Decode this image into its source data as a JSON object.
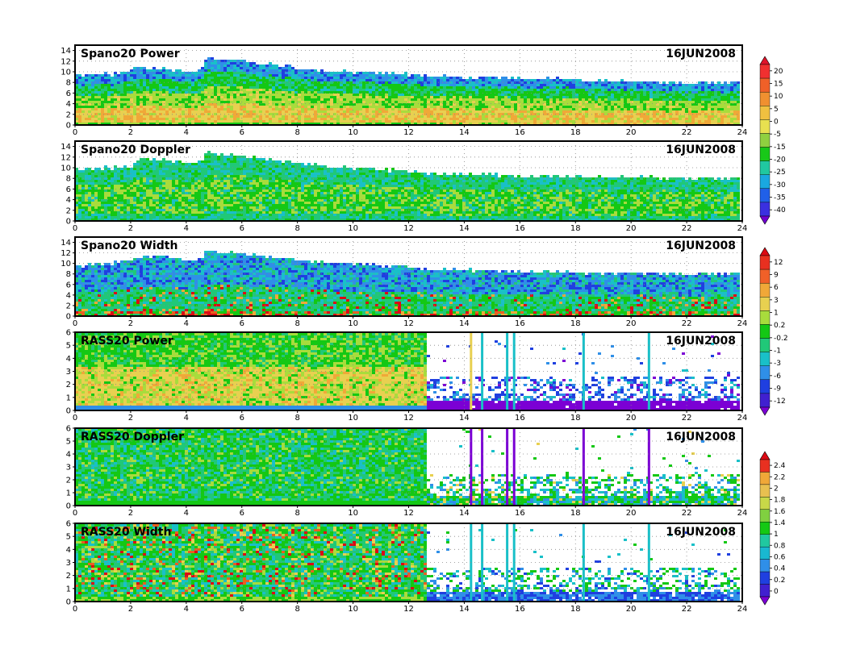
{
  "colors": {
    "palette": [
      "#7b00d4",
      "#1f3fe0",
      "#2f8fe8",
      "#19c0c8",
      "#20c878",
      "#14c814",
      "#a8dc3c",
      "#e8d050",
      "#f0a838",
      "#e86020",
      "#dc0a14"
    ],
    "frame": "#000000",
    "grid": "#888888"
  },
  "chart_data": [
    {
      "type": "heatmap",
      "title": "Spano20 Power",
      "date": "16JUN2008",
      "x_ticks": [
        "0",
        "2",
        "4",
        "6",
        "8",
        "10",
        "12",
        "14",
        "16",
        "18",
        "20",
        "22",
        "24"
      ],
      "y_ticks": [
        "0",
        "2",
        "4",
        "6",
        "8",
        "10",
        "12",
        "14"
      ],
      "xlim": [
        0,
        24
      ],
      "ylim": [
        0,
        15
      ],
      "grid": true,
      "top_height_profile": [
        [
          0,
          9.5
        ],
        [
          1.6,
          9.7
        ],
        [
          2.2,
          10.8
        ],
        [
          4.4,
          10.2
        ],
        [
          4.8,
          12.5
        ],
        [
          6,
          12.2
        ],
        [
          8,
          10.8
        ],
        [
          10,
          10
        ],
        [
          12,
          9.6
        ],
        [
          14,
          9
        ],
        [
          16,
          8.9
        ],
        [
          18,
          8.6
        ],
        [
          20,
          8.2
        ],
        [
          22,
          7.9
        ],
        [
          24,
          8
        ]
      ],
      "colorbar_labels": [
        "20",
        "15",
        "10",
        "5",
        "0",
        "-5",
        "-15",
        "-20",
        "-25",
        "-30",
        "-35",
        "-40"
      ]
    },
    {
      "type": "heatmap",
      "title": "Spano20 Doppler",
      "date": "16JUN2008",
      "x_ticks": [
        "0",
        "2",
        "4",
        "6",
        "8",
        "10",
        "12",
        "14",
        "16",
        "18",
        "20",
        "22",
        "24"
      ],
      "y_ticks": [
        "0",
        "2",
        "4",
        "6",
        "8",
        "10",
        "12",
        "14"
      ],
      "xlim": [
        0,
        24
      ],
      "ylim": [
        0,
        15
      ],
      "grid": true,
      "top_height_profile": [
        [
          0,
          9.8
        ],
        [
          2,
          10.2
        ],
        [
          2.4,
          11.8
        ],
        [
          4.4,
          11
        ],
        [
          4.8,
          12.8
        ],
        [
          6,
          12.4
        ],
        [
          8,
          11
        ],
        [
          10,
          10
        ],
        [
          12,
          9.4
        ],
        [
          14,
          8.8
        ],
        [
          16,
          8.6
        ],
        [
          18,
          8.4
        ],
        [
          20,
          8.3
        ],
        [
          22,
          8.1
        ],
        [
          24,
          8.2
        ]
      ]
    },
    {
      "type": "heatmap",
      "title": "Spano20 Width",
      "date": "16JUN2008",
      "x_ticks": [
        "0",
        "2",
        "4",
        "6",
        "8",
        "10",
        "12",
        "14",
        "16",
        "18",
        "20",
        "22",
        "24"
      ],
      "y_ticks": [
        "0",
        "2",
        "4",
        "6",
        "8",
        "10",
        "12",
        "14"
      ],
      "xlim": [
        0,
        24
      ],
      "ylim": [
        0,
        15
      ],
      "grid": true,
      "top_height_profile": [
        [
          0,
          9.6
        ],
        [
          2,
          10.5
        ],
        [
          2.6,
          11.5
        ],
        [
          4.4,
          10.8
        ],
        [
          4.8,
          12.4
        ],
        [
          6,
          12
        ],
        [
          8,
          10.8
        ],
        [
          10,
          10
        ],
        [
          12,
          9.4
        ],
        [
          14,
          8.8
        ],
        [
          16,
          8.6
        ],
        [
          18,
          8.4
        ],
        [
          20,
          8.2
        ],
        [
          22,
          8
        ],
        [
          24,
          8.2
        ]
      ],
      "colorbar_labels": [
        "12",
        "9",
        "6",
        "3",
        "1",
        "0.2",
        "-0.2",
        "-1",
        "-3",
        "-6",
        "-9",
        "-12"
      ]
    },
    {
      "type": "heatmap",
      "title": "RASS20 Power",
      "date": "16JUN2008",
      "x_ticks": [
        "0",
        "2",
        "4",
        "6",
        "8",
        "10",
        "12",
        "14",
        "16",
        "18",
        "20",
        "22",
        "24"
      ],
      "y_ticks": [
        "0",
        "1",
        "2",
        "3",
        "4",
        "5",
        "6"
      ],
      "xlim": [
        0,
        24
      ],
      "ylim": [
        0,
        6
      ],
      "grid": true,
      "dense_until_hour": 12.7
    },
    {
      "type": "heatmap",
      "title": "RASS20 Doppler",
      "date": "16JUN2008",
      "x_ticks": [
        "0",
        "2",
        "4",
        "6",
        "8",
        "10",
        "12",
        "14",
        "16",
        "18",
        "20",
        "22",
        "24"
      ],
      "y_ticks": [
        "0",
        "1",
        "2",
        "3",
        "4",
        "5",
        "6"
      ],
      "xlim": [
        0,
        24
      ],
      "ylim": [
        0,
        6
      ],
      "grid": true,
      "dense_until_hour": 12.7,
      "colorbar_labels": [
        "2.4",
        "2.2",
        "2",
        "1.8",
        "1.6",
        "1.4",
        "1",
        "0.8",
        "0.6",
        "0.4",
        "0.2",
        "0"
      ]
    },
    {
      "type": "heatmap",
      "title": "RASS20 Width",
      "date": "16JUN2008",
      "x_ticks": [
        "0",
        "2",
        "4",
        "6",
        "8",
        "10",
        "12",
        "14",
        "16",
        "18",
        "20",
        "22",
        "24"
      ],
      "y_ticks": [
        "0",
        "1",
        "2",
        "3",
        "4",
        "5",
        "6"
      ],
      "xlim": [
        0,
        24
      ],
      "ylim": [
        0,
        6
      ],
      "grid": true,
      "dense_until_hour": 12.7
    }
  ]
}
